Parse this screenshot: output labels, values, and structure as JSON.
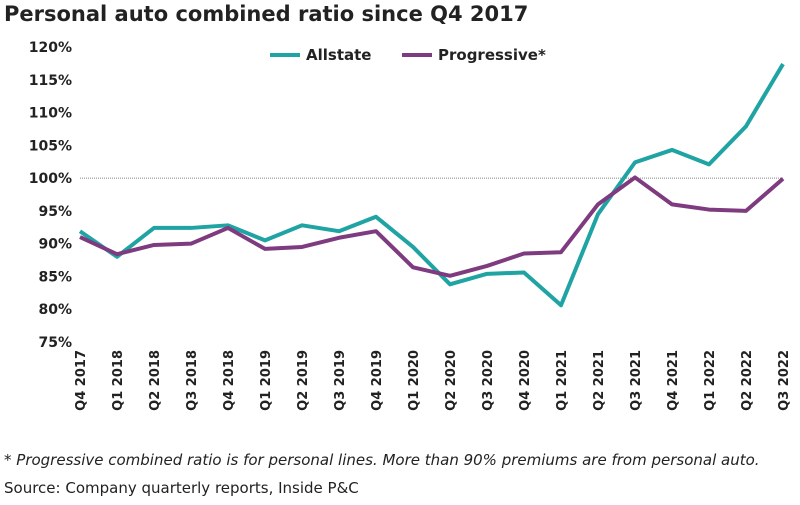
{
  "chart_data": {
    "type": "line",
    "title": "Personal auto combined ratio since Q4 2017",
    "xlabel": "",
    "ylabel": "",
    "categories": [
      "Q4 2017",
      "Q1 2018",
      "Q2 2018",
      "Q3 2018",
      "Q4 2018",
      "Q1 2019",
      "Q2 2019",
      "Q3 2019",
      "Q4 2019",
      "Q1 2020",
      "Q2 2020",
      "Q3 2020",
      "Q4 2020",
      "Q1 2021",
      "Q2 2021",
      "Q3 2021",
      "Q4 2021",
      "Q1 2022",
      "Q2 2022",
      "Q3 2022"
    ],
    "series": [
      {
        "name": "Allstate",
        "color": "#1FA3A3",
        "values": [
          91.9,
          88.0,
          92.4,
          92.4,
          92.8,
          90.5,
          92.8,
          91.9,
          94.1,
          89.5,
          83.8,
          85.4,
          85.6,
          80.6,
          94.5,
          102.4,
          104.3,
          102.1,
          107.9,
          117.4
        ]
      },
      {
        "name": "Progressive*",
        "color": "#7E3B7F",
        "values": [
          91.0,
          88.4,
          89.8,
          90.0,
          92.4,
          89.2,
          89.5,
          90.9,
          91.9,
          86.4,
          85.1,
          86.6,
          88.5,
          88.7,
          96.0,
          100.1,
          96.0,
          95.2,
          95.0,
          99.9
        ]
      }
    ],
    "ylim": [
      75,
      120
    ],
    "yticks": [
      75,
      80,
      85,
      90,
      95,
      100,
      105,
      110,
      115,
      120
    ],
    "ytick_suffix": "%",
    "reference_line": 100,
    "grid": false,
    "legend_position": "top-center"
  },
  "footnote": "* Progressive combined ratio is for personal lines. More than 90% premiums are from personal auto.",
  "source": "Source: Company quarterly reports, Inside P&C"
}
